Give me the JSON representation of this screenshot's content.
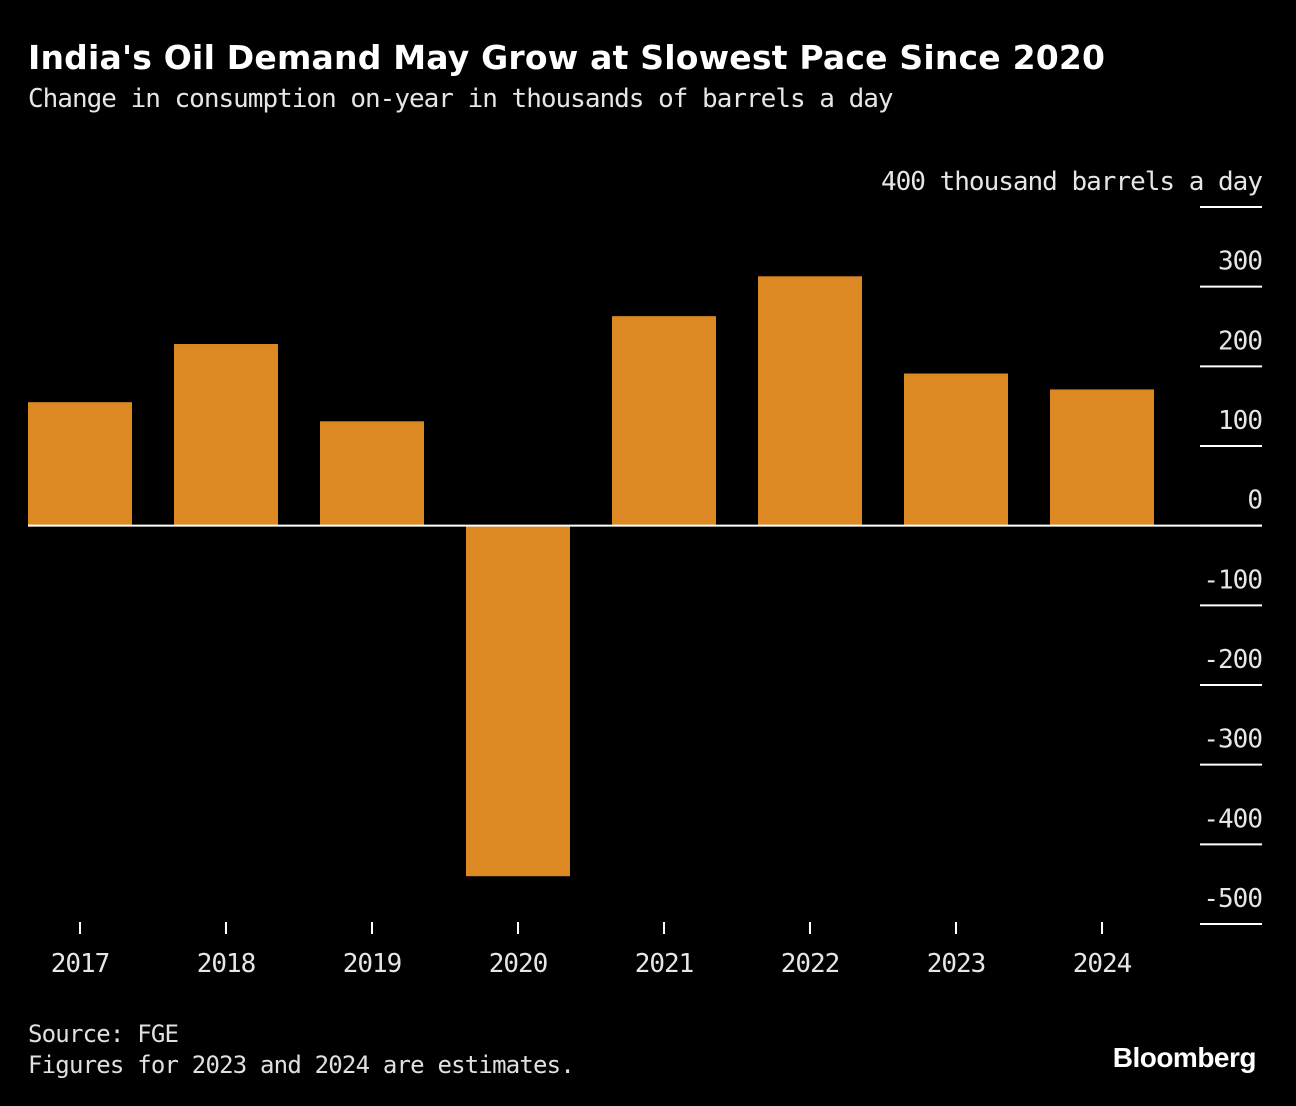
{
  "header": {
    "title": "India's Oil Demand May Grow at Slowest Pace Since 2020",
    "subtitle": "Change in consumption on-year in thousands of barrels a day"
  },
  "footer": {
    "source": "Source: FGE",
    "note": "Figures for 2023 and 2024 are estimates.",
    "brand": "Bloomberg"
  },
  "colors": {
    "bar": "#dc8924",
    "background": "#000000",
    "axis": "#ffffff",
    "text": "#e6e6e6"
  },
  "chart_data": {
    "type": "bar",
    "title": "India's Oil Demand May Grow at Slowest Pace Since 2020",
    "subtitle": "Change in consumption on-year in thousands of barrels a day",
    "categories": [
      "2017",
      "2018",
      "2019",
      "2020",
      "2021",
      "2022",
      "2023",
      "2024"
    ],
    "values": [
      155,
      228,
      131,
      -440,
      263,
      313,
      191,
      171
    ],
    "ylim": [
      -500,
      400
    ],
    "yticks": [
      400,
      300,
      200,
      100,
      0,
      -100,
      -200,
      -300,
      -400,
      -500
    ],
    "ytick_labels": [
      "400 thousand barrels a day",
      "300",
      "200",
      "100",
      "0",
      "-100",
      "-200",
      "-300",
      "-400",
      "-500"
    ],
    "yaxis_position": "right",
    "xlabel": "",
    "ylabel": "",
    "grid": false
  }
}
